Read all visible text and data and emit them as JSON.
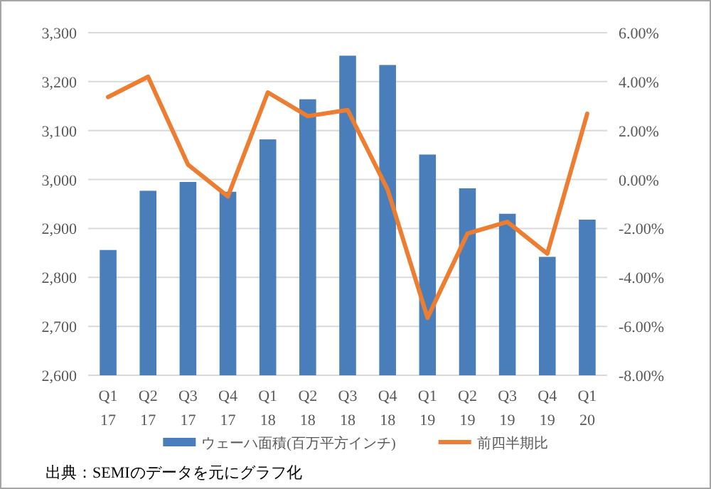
{
  "chart_data": {
    "type": "bar",
    "categories": [
      "Q1\n17",
      "Q2\n17",
      "Q3\n17",
      "Q4\n17",
      "Q1\n18",
      "Q2\n18",
      "Q3\n18",
      "Q4\n18",
      "Q1\n19",
      "Q2\n19",
      "Q3\n19",
      "Q4\n19",
      "Q1\n20"
    ],
    "series": [
      {
        "name": "ウェーハ面積(百万平方インチ)",
        "color": "#4a7ebb",
        "values": [
          2856,
          2977,
          2995,
          2975,
          3082,
          3164,
          3253,
          3234,
          3051,
          2982,
          2930,
          2842,
          2918
        ]
      },
      {
        "name": "前四半期比",
        "color": "#ed7d31",
        "type": "line",
        "axis": "y2",
        "values": [
          3.37,
          4.2,
          0.61,
          -0.69,
          3.56,
          2.59,
          2.84,
          -0.41,
          -5.65,
          -2.21,
          -1.73,
          -3.03,
          2.69
        ]
      }
    ],
    "ylim": [
      2600,
      3300
    ],
    "yticks": [
      {
        "value": 2600,
        "label": "2,600"
      },
      {
        "value": 2700,
        "label": "2,700"
      },
      {
        "value": 2800,
        "label": "2,800"
      },
      {
        "value": 2900,
        "label": "2,900"
      },
      {
        "value": 3000,
        "label": "3,000"
      },
      {
        "value": 3100,
        "label": "3,100"
      },
      {
        "value": 3200,
        "label": "3,200"
      },
      {
        "value": 3300,
        "label": "3,300"
      }
    ],
    "y2lim": [
      -8,
      6
    ],
    "y2ticks": [
      {
        "value": -8,
        "label": "-8.00%"
      },
      {
        "value": -6,
        "label": "-6.00%"
      },
      {
        "value": -4,
        "label": "-4.00%"
      },
      {
        "value": -2,
        "label": "-2.00%"
      },
      {
        "value": 0,
        "label": "0.00%"
      },
      {
        "value": 2,
        "label": "2.00%"
      },
      {
        "value": 4,
        "label": "4.00%"
      },
      {
        "value": 6,
        "label": "6.00%"
      }
    ],
    "grid": "y",
    "legend": "bottom",
    "marker": "none",
    "line_style": "solid",
    "annotations": [
      "出典：SEMIのデータを元にグラフ化"
    ]
  }
}
